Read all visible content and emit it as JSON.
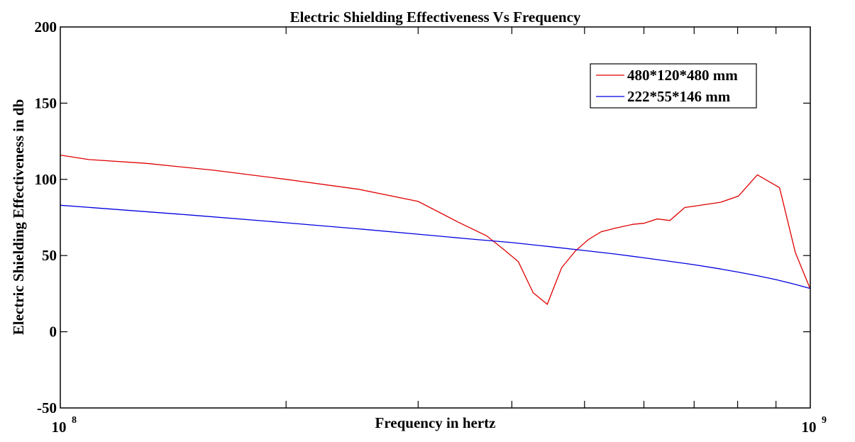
{
  "chart_data": {
    "type": "line",
    "title": "Electric Shielding Effectiveness Vs Frequency",
    "xlabel": "Frequency in hertz",
    "ylabel": "Electric Shielding Effectiveness in db",
    "xscale": "log",
    "xlim": [
      100000000,
      1000000000
    ],
    "ylim": [
      -50,
      200
    ],
    "xticks": [
      {
        "value": 100000000,
        "base": "10",
        "exp": "8"
      },
      {
        "value": 1000000000,
        "base": "10",
        "exp": "9"
      }
    ],
    "xminor_ticks": [
      200000000,
      300000000,
      400000000,
      500000000,
      600000000,
      700000000,
      800000000,
      900000000
    ],
    "yticks": [
      -50,
      0,
      50,
      100,
      150,
      200
    ],
    "ytick_labels": [
      "-50",
      "0",
      "50",
      "100",
      "150",
      "200"
    ],
    "grid": false,
    "legend": {
      "placement": "top-right",
      "entries": [
        "480*120*480 mm",
        "222*55*146 mm"
      ]
    },
    "series": [
      {
        "name": "480*120*480 mm",
        "color": "#e00000",
        "x": [
          100000000,
          109100000,
          130000000,
          160000000,
          200000000,
          250000000,
          300000000,
          339000000,
          370000000,
          389000000,
          408000000,
          427000000,
          446000000,
          466000000,
          486000000,
          506000000,
          526000000,
          550000000,
          580000000,
          600000000,
          625000000,
          650000000,
          680000000,
          700000000,
          760000000,
          802000000,
          850000000,
          910000000,
          955000000,
          1000000000
        ],
        "y": [
          115.9,
          113,
          110.5,
          106,
          100,
          93.5,
          85.5,
          72,
          63,
          54.5,
          46,
          25.6,
          18,
          42,
          53,
          60.5,
          65.6,
          68,
          70.5,
          71.2,
          74,
          73,
          81.5,
          82.4,
          85,
          89,
          103,
          94.5,
          52,
          28
        ]
      },
      {
        "name": "222*55*146 mm",
        "color": "#0000e0",
        "x": [
          100000000,
          150000000,
          200000000,
          250000000,
          300000000,
          350000000,
          400000000,
          450000000,
          500000000,
          550000000,
          600000000,
          650000000,
          700000000,
          750000000,
          800000000,
          850000000,
          900000000,
          950000000,
          1000000000
        ],
        "y": [
          83,
          76.5,
          71.5,
          67.5,
          64,
          61,
          58.5,
          55.8,
          53.3,
          51,
          48.5,
          46.2,
          44,
          41.6,
          39.2,
          36.8,
          34.2,
          31.4,
          28.4
        ]
      }
    ]
  }
}
